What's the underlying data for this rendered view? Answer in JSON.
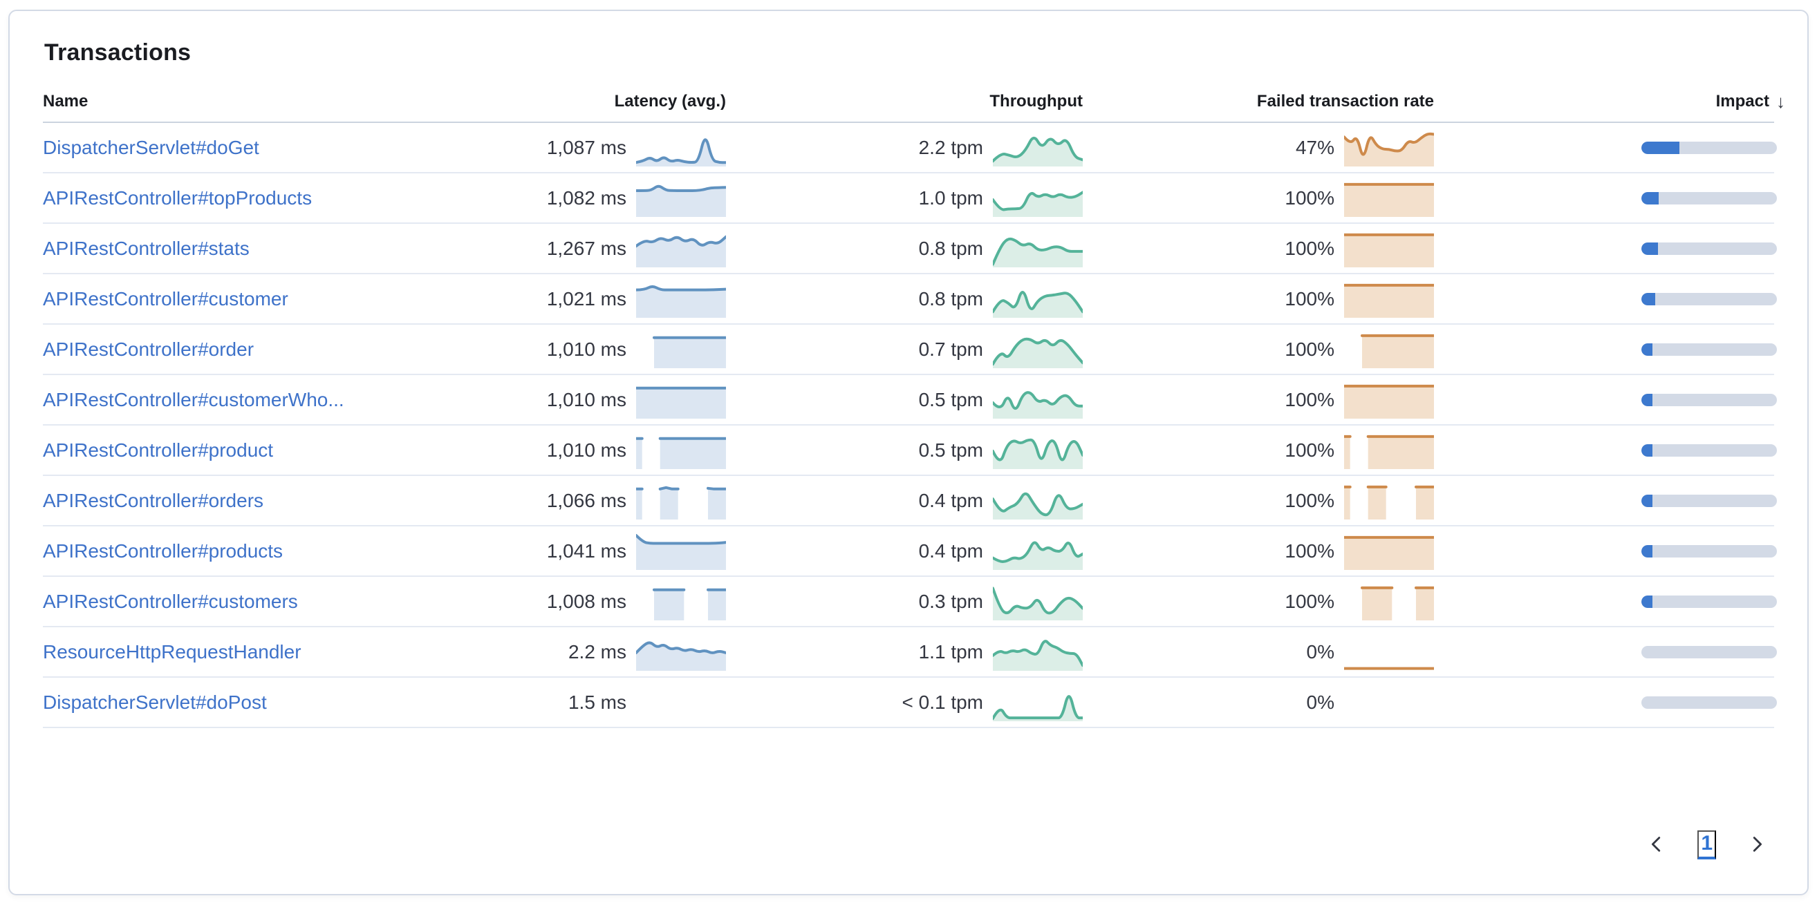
{
  "panel": {
    "title": "Transactions"
  },
  "colors": {
    "link": "#3E72C9",
    "latency_line": "#6092C0",
    "latency_fill": "#DCE6F2",
    "throughput_line": "#54B399",
    "throughput_fill": "#DCEEE7",
    "failed_line": "#CE8A4B",
    "failed_fill": "#F3E0CC",
    "impact_fill": "#3D79CE",
    "impact_track": "#D3DAE6"
  },
  "table": {
    "columns": [
      {
        "label": "Name"
      },
      {
        "label": "Latency (avg.)"
      },
      {
        "label": "Throughput"
      },
      {
        "label": "Failed transaction rate"
      },
      {
        "label": "Impact",
        "sorted": "desc",
        "sort_icon": "↓"
      }
    ],
    "rows": [
      {
        "name": "DispatcherServlet#doGet",
        "latency": "1,087 ms",
        "throughput": "2.2 tpm",
        "failed_rate": "47%",
        "impact_pct": 28,
        "latency_spark": {
          "smooth": true,
          "points": [
            0.08,
            0.12,
            0.24,
            0.1,
            0.26,
            0.1,
            0.16,
            0.1,
            0.08,
            0.1,
            0.98,
            0.14,
            0.08,
            0.08
          ]
        },
        "throughput_spark": {
          "smooth": true,
          "points": [
            0.12,
            0.36,
            0.3,
            0.22,
            0.44,
            0.93,
            0.5,
            0.86,
            0.58,
            0.83,
            0.24,
            0.16
          ]
        },
        "failed_spark": {
          "smooth": true,
          "points": [
            0.85,
            0.62,
            0.9,
            0.12,
            0.95,
            0.6,
            0.48,
            0.48,
            0.42,
            0.44,
            0.74,
            0.66,
            0.82,
            0.95,
            0.93
          ]
        }
      },
      {
        "name": "APIRestController#topProducts",
        "latency": "1,082 ms",
        "throughput": "1.0 tpm",
        "failed_rate": "100%",
        "impact_pct": 12.5,
        "latency_spark": {
          "smooth": true,
          "points": [
            0.75,
            0.75,
            0.76,
            0.92,
            0.76,
            0.75,
            0.75,
            0.75,
            0.75,
            0.78,
            0.84,
            0.84,
            0.85
          ]
        },
        "throughput_spark": {
          "smooth": true,
          "points": [
            0.48,
            0.16,
            0.2,
            0.2,
            0.22,
            0.74,
            0.54,
            0.66,
            0.54,
            0.66,
            0.54,
            0.56,
            0.7
          ]
        },
        "failed_spark": {
          "smooth": false,
          "points": [
            0.94,
            0.94,
            0.94,
            0.94,
            0.94,
            0.94,
            0.94,
            0.94,
            0.94,
            0.94,
            0.94,
            0.94,
            0.94,
            0.94,
            0.94,
            0.94
          ]
        }
      },
      {
        "name": "APIRestController#stats",
        "latency": "1,267 ms",
        "throughput": "0.8 tpm",
        "failed_rate": "100%",
        "impact_pct": 12,
        "latency_spark": {
          "smooth": true,
          "points": [
            0.6,
            0.78,
            0.7,
            0.86,
            0.74,
            0.9,
            0.72,
            0.84,
            0.58,
            0.74,
            0.66,
            0.88
          ]
        },
        "throughput_spark": {
          "smooth": true,
          "points": [
            0.05,
            0.58,
            0.84,
            0.78,
            0.6,
            0.7,
            0.48,
            0.48,
            0.58,
            0.58,
            0.44,
            0.44,
            0.44
          ]
        },
        "failed_spark": {
          "smooth": false,
          "points": [
            0.94,
            0.94,
            0.94,
            0.94,
            0.94,
            0.94,
            0.94,
            0.94,
            0.94,
            0.94,
            0.94,
            0.94,
            0.94,
            0.94,
            0.94,
            0.94
          ]
        }
      },
      {
        "name": "APIRestController#customer",
        "latency": "1,021 ms",
        "throughput": "0.8 tpm",
        "failed_rate": "100%",
        "impact_pct": 10,
        "latency_spark": {
          "smooth": true,
          "points": [
            0.8,
            0.8,
            0.93,
            0.8,
            0.8,
            0.8,
            0.8,
            0.8,
            0.8,
            0.8,
            0.81,
            0.82
          ]
        },
        "throughput_spark": {
          "smooth": true,
          "points": [
            0.14,
            0.52,
            0.42,
            0.2,
            0.92,
            0.1,
            0.48,
            0.62,
            0.64,
            0.68,
            0.72,
            0.48,
            0.14
          ]
        },
        "failed_spark": {
          "smooth": false,
          "points": [
            0.94,
            0.94,
            0.94,
            0.94,
            0.94,
            0.94,
            0.94,
            0.94,
            0.94,
            0.94,
            0.94,
            0.94,
            0.94,
            0.94,
            0.94,
            0.94
          ]
        }
      },
      {
        "name": "APIRestController#order",
        "latency": "1,010 ms",
        "throughput": "0.7 tpm",
        "failed_rate": "100%",
        "impact_pct": 8,
        "latency_spark": {
          "smooth": false,
          "points": [
            null,
            null,
            null,
            0.88,
            0.88,
            0.88,
            0.88,
            0.88,
            0.88,
            0.88,
            0.88,
            0.88,
            0.88,
            0.88,
            0.88,
            0.88
          ]
        },
        "throughput_spark": {
          "smooth": true,
          "points": [
            0.08,
            0.48,
            0.24,
            0.62,
            0.84,
            0.84,
            0.68,
            0.84,
            0.6,
            0.84,
            0.68,
            0.38,
            0.12
          ]
        },
        "failed_spark": {
          "smooth": false,
          "points": [
            null,
            null,
            null,
            0.94,
            0.94,
            0.94,
            0.94,
            0.94,
            0.94,
            0.94,
            0.94,
            0.94,
            0.94,
            0.94,
            0.94,
            0.94
          ]
        }
      },
      {
        "name": "APIRestController#customerWho...",
        "latency": "1,010 ms",
        "throughput": "0.5 tpm",
        "failed_rate": "100%",
        "impact_pct": 6.5,
        "latency_spark": {
          "smooth": false,
          "points": [
            0.88,
            0.88,
            0.88,
            0.88,
            0.88,
            0.88,
            0.88,
            0.88,
            0.88,
            0.88,
            0.88,
            0.88,
            0.88,
            0.88,
            0.88,
            0.88
          ]
        },
        "throughput_spark": {
          "smooth": true,
          "points": [
            0.44,
            0.18,
            0.72,
            0.12,
            0.7,
            0.78,
            0.44,
            0.54,
            0.34,
            0.62,
            0.68,
            0.34,
            0.34
          ]
        },
        "failed_spark": {
          "smooth": false,
          "points": [
            0.94,
            0.94,
            0.94,
            0.94,
            0.94,
            0.94,
            0.94,
            0.94,
            0.94,
            0.94,
            0.94,
            0.94,
            0.94,
            0.94,
            0.94,
            0.94
          ]
        }
      },
      {
        "name": "APIRestController#product",
        "latency": "1,010 ms",
        "throughput": "0.5 tpm",
        "failed_rate": "100%",
        "impact_pct": 6.5,
        "latency_spark": {
          "smooth": false,
          "points": [
            0.88,
            0.88,
            null,
            null,
            0.88,
            0.88,
            0.88,
            0.88,
            0.88,
            0.88,
            0.88,
            0.88,
            0.88,
            0.88,
            0.88,
            0.88
          ]
        },
        "throughput_spark": {
          "smooth": true,
          "points": [
            0.5,
            0.06,
            0.66,
            0.84,
            0.72,
            0.84,
            0.84,
            0.1,
            0.78,
            0.84,
            0.06,
            0.72,
            0.84,
            0.38
          ]
        },
        "failed_spark": {
          "smooth": false,
          "points": [
            0.94,
            0.94,
            null,
            null,
            0.94,
            0.94,
            0.94,
            0.94,
            0.94,
            0.94,
            0.94,
            0.94,
            0.94,
            0.94,
            0.94,
            0.94
          ]
        }
      },
      {
        "name": "APIRestController#orders",
        "latency": "1,066 ms",
        "throughput": "0.4 tpm",
        "failed_rate": "100%",
        "impact_pct": 5.5,
        "latency_spark": {
          "smooth": false,
          "points": [
            0.88,
            0.88,
            null,
            null,
            0.88,
            0.92,
            0.88,
            0.88,
            null,
            null,
            null,
            null,
            0.9,
            0.88,
            0.88,
            0.88
          ]
        },
        "throughput_spark": {
          "smooth": true,
          "points": [
            0.58,
            0.14,
            0.32,
            0.42,
            0.84,
            0.42,
            0.1,
            0.1,
            0.84,
            0.28,
            0.28,
            0.42
          ]
        },
        "failed_spark": {
          "smooth": false,
          "points": [
            0.94,
            0.94,
            null,
            null,
            0.94,
            0.94,
            0.94,
            0.94,
            null,
            null,
            null,
            null,
            0.94,
            0.94,
            0.94,
            0.94
          ]
        }
      },
      {
        "name": "APIRestController#products",
        "latency": "1,041 ms",
        "throughput": "0.4 tpm",
        "failed_rate": "100%",
        "impact_pct": 5.5,
        "latency_spark": {
          "smooth": true,
          "points": [
            1.0,
            0.8,
            0.76,
            0.76,
            0.76,
            0.76,
            0.76,
            0.76,
            0.76,
            0.76,
            0.76,
            0.76,
            0.77,
            0.79
          ]
        },
        "throughput_spark": {
          "smooth": true,
          "points": [
            0.32,
            0.2,
            0.22,
            0.34,
            0.28,
            0.44,
            0.88,
            0.52,
            0.66,
            0.52,
            0.52,
            0.88,
            0.32,
            0.44
          ]
        },
        "failed_spark": {
          "smooth": false,
          "points": [
            0.94,
            0.94,
            0.94,
            0.94,
            0.94,
            0.94,
            0.94,
            0.94,
            0.94,
            0.94,
            0.94,
            0.94,
            0.94,
            0.94,
            0.94,
            0.94
          ]
        }
      },
      {
        "name": "APIRestController#customers",
        "latency": "1,008 ms",
        "throughput": "0.3 tpm",
        "failed_rate": "100%",
        "impact_pct": 4.5,
        "latency_spark": {
          "smooth": false,
          "points": [
            null,
            null,
            null,
            0.88,
            0.88,
            0.88,
            0.88,
            0.88,
            0.88,
            null,
            null,
            null,
            0.88,
            0.88,
            0.88,
            0.88
          ]
        },
        "throughput_spark": {
          "smooth": true,
          "points": [
            0.93,
            0.28,
            0.14,
            0.42,
            0.32,
            0.34,
            0.66,
            0.18,
            0.18,
            0.48,
            0.66,
            0.56,
            0.32
          ]
        },
        "failed_spark": {
          "smooth": false,
          "points": [
            null,
            null,
            null,
            0.94,
            0.94,
            0.94,
            0.94,
            0.94,
            0.94,
            null,
            null,
            null,
            0.94,
            0.94,
            0.94,
            0.94
          ]
        }
      },
      {
        "name": "ResourceHttpRequestHandler",
        "latency": "2.2 ms",
        "throughput": "1.1 tpm",
        "failed_rate": "0%",
        "impact_pct": 0,
        "latency_spark": {
          "smooth": true,
          "points": [
            0.5,
            0.72,
            0.84,
            0.66,
            0.76,
            0.6,
            0.66,
            0.55,
            0.62,
            0.52,
            0.58,
            0.48,
            0.56,
            0.5
          ]
        },
        "throughput_spark": {
          "smooth": true,
          "points": [
            0.42,
            0.58,
            0.48,
            0.58,
            0.52,
            0.62,
            0.48,
            0.44,
            0.92,
            0.72,
            0.66,
            0.52,
            0.48,
            0.48,
            0.12
          ]
        },
        "failed_spark": {
          "smooth": false,
          "nofill": true,
          "points": [
            0.03,
            0.03,
            0.03,
            0.03,
            0.03,
            0.03,
            0.03,
            0.03,
            0.03,
            0.03,
            0.03,
            0.03,
            0.03,
            0.03
          ]
        }
      },
      {
        "name": "DispatcherServlet#doPost",
        "latency": "1.5 ms",
        "throughput": "< 0.1 tpm",
        "failed_rate": "0%",
        "impact_pct": 0,
        "latency_spark": {
          "smooth": true,
          "points": []
        },
        "throughput_spark": {
          "smooth": true,
          "points": [
            0.04,
            0.42,
            0.06,
            0.06,
            0.06,
            0.06,
            0.06,
            0.06,
            0.06,
            0.06,
            0.06,
            0.92,
            0.06,
            0.06
          ]
        },
        "failed_spark": {
          "smooth": false,
          "points": []
        }
      }
    ]
  },
  "pagination": {
    "page": "1"
  }
}
